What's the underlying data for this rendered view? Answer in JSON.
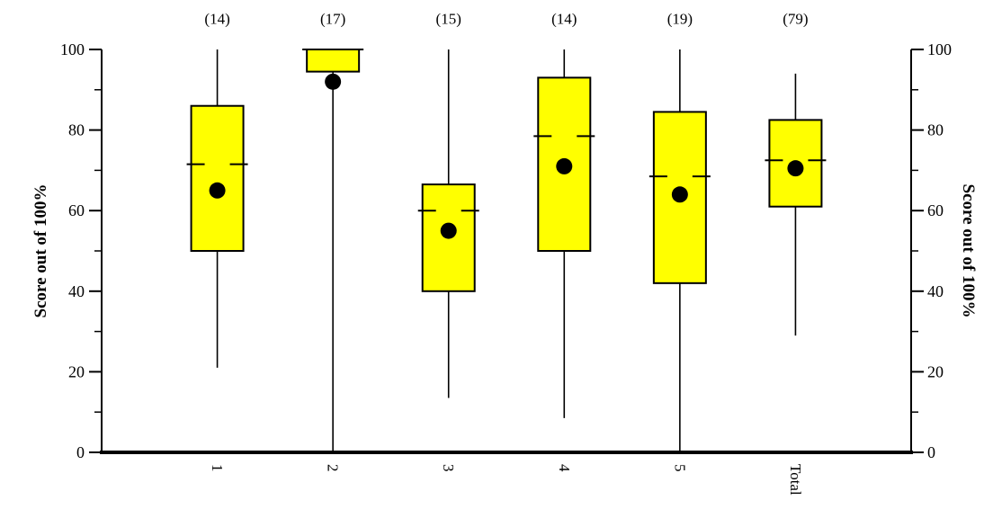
{
  "chart_data": {
    "type": "boxplot",
    "title": "",
    "ylabel_left": "Score out of 100%",
    "ylabel_right": "Score out of 100%",
    "xlabel": "",
    "categories": [
      "1",
      "2",
      "3",
      "4",
      "5",
      "Total"
    ],
    "counts": [
      "(14)",
      "(17)",
      "(15)",
      "(14)",
      "(19)",
      "(79)"
    ],
    "ylim": [
      0,
      100
    ],
    "yticks_major": [
      0,
      20,
      40,
      60,
      80,
      100
    ],
    "yticks_minor": [
      10,
      30,
      50,
      70,
      90
    ],
    "legend": "none",
    "grid": false,
    "box_fill_color": "#ffff00",
    "line_color": "#000000",
    "mean_marker_color": "#000000",
    "series": [
      {
        "label": "1",
        "n": 14,
        "whisker_low": 21,
        "q1": 50,
        "median": 71.5,
        "mean": 65,
        "q3": 86,
        "whisker_high": 100
      },
      {
        "label": "2",
        "n": 17,
        "whisker_low": 0,
        "q1": 94.5,
        "median": 100,
        "mean": 92,
        "q3": 100,
        "whisker_high": 100
      },
      {
        "label": "3",
        "n": 15,
        "whisker_low": 13.5,
        "q1": 40,
        "median": 60,
        "mean": 55,
        "q3": 66.5,
        "whisker_high": 100
      },
      {
        "label": "4",
        "n": 14,
        "whisker_low": 8.5,
        "q1": 50,
        "median": 78.5,
        "mean": 71,
        "q3": 93,
        "whisker_high": 100
      },
      {
        "label": "5",
        "n": 19,
        "whisker_low": 0,
        "q1": 42,
        "median": 68.5,
        "mean": 64,
        "q3": 84.5,
        "whisker_high": 100
      },
      {
        "label": "Total",
        "n": 79,
        "whisker_low": 29,
        "q1": 61,
        "median": 72.5,
        "mean": 70.5,
        "q3": 82.5,
        "whisker_high": 94
      }
    ]
  }
}
